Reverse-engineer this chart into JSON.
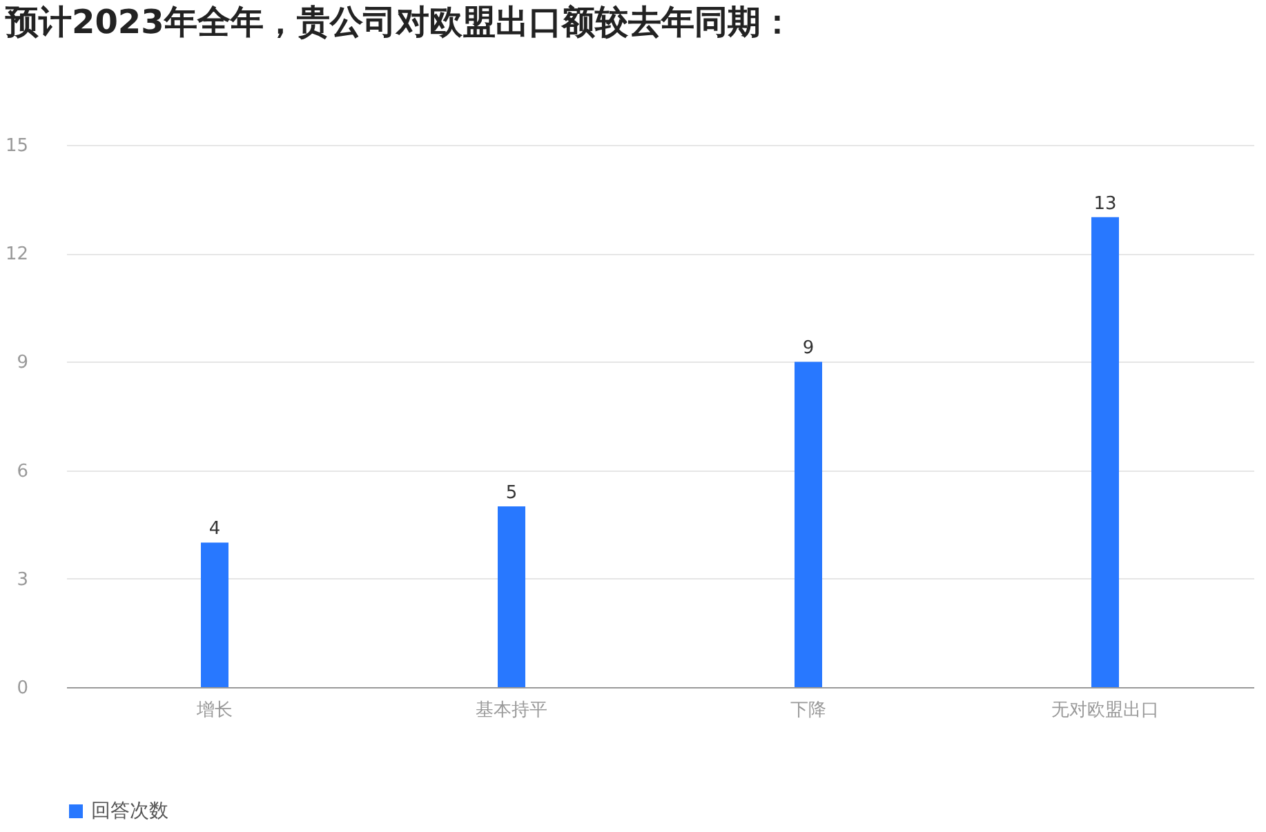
{
  "chart_data": {
    "type": "bar",
    "title": "预计2023年全年，贵公司对欧盟出口额较去年同期：",
    "categories": [
      "增长",
      "基本持平",
      "下降",
      "无对欧盟出口"
    ],
    "series": [
      {
        "name": "回答次数",
        "color": "#2878ff",
        "values": [
          4,
          5,
          9,
          13
        ]
      }
    ],
    "ylim": [
      0,
      15
    ],
    "yticks": [
      0,
      3,
      6,
      9,
      12,
      15
    ],
    "grid": "y",
    "legend": "bottom",
    "data_labels": true
  }
}
